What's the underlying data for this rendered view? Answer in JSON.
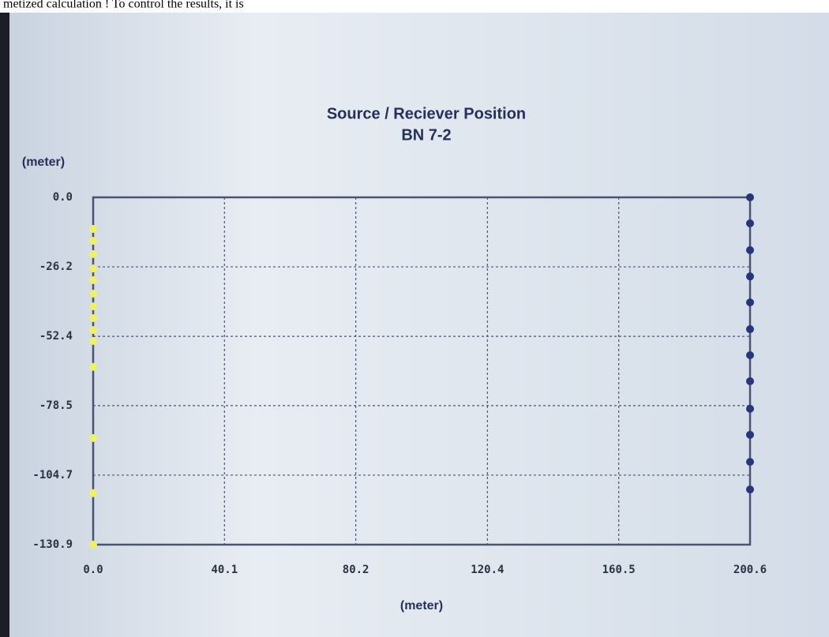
{
  "page_text": "metized calculation ! To control the results, it is",
  "chart_data": {
    "type": "scatter",
    "title": "Source / Reciever Position",
    "subtitle": "BN 7-2",
    "xlabel": "(meter)",
    "ylabel": "(meter)",
    "xlim": [
      0,
      200.6
    ],
    "ylim": [
      -130.9,
      0
    ],
    "xticks": [
      {
        "value": 0,
        "label": "0.0"
      },
      40.1,
      80.2,
      120.4,
      160.5,
      200.6
    ],
    "yticks": [
      {
        "value": 0,
        "label": "0.0"
      },
      -26.2,
      -52.4,
      -78.5,
      -104.7,
      -130.9
    ],
    "grid": true,
    "series": [
      {
        "color": "#eef06a",
        "x": [
          0,
          0,
          0,
          0,
          0,
          0,
          0,
          0,
          0,
          0,
          0,
          0,
          0,
          0
        ],
        "y": [
          -11.9,
          -16.4,
          -21.4,
          -26.8,
          -31.2,
          -36.3,
          -41.1,
          -45.5,
          -50.0,
          -54.1,
          -63.9,
          -90.7,
          -111.5,
          -130.9
        ]
      },
      {
        "color": "#27357e",
        "x": [
          200.6,
          200.6,
          200.6,
          200.6,
          200.6,
          200.6,
          200.6,
          200.6,
          200.6,
          200.6,
          200.6,
          200.6
        ],
        "y": [
          0,
          -9.8,
          -19.9,
          -29.8,
          -39.6,
          -49.7,
          -59.5,
          -69.3,
          -79.7,
          -89.5,
          -99.7,
          -110.1
        ]
      }
    ]
  }
}
